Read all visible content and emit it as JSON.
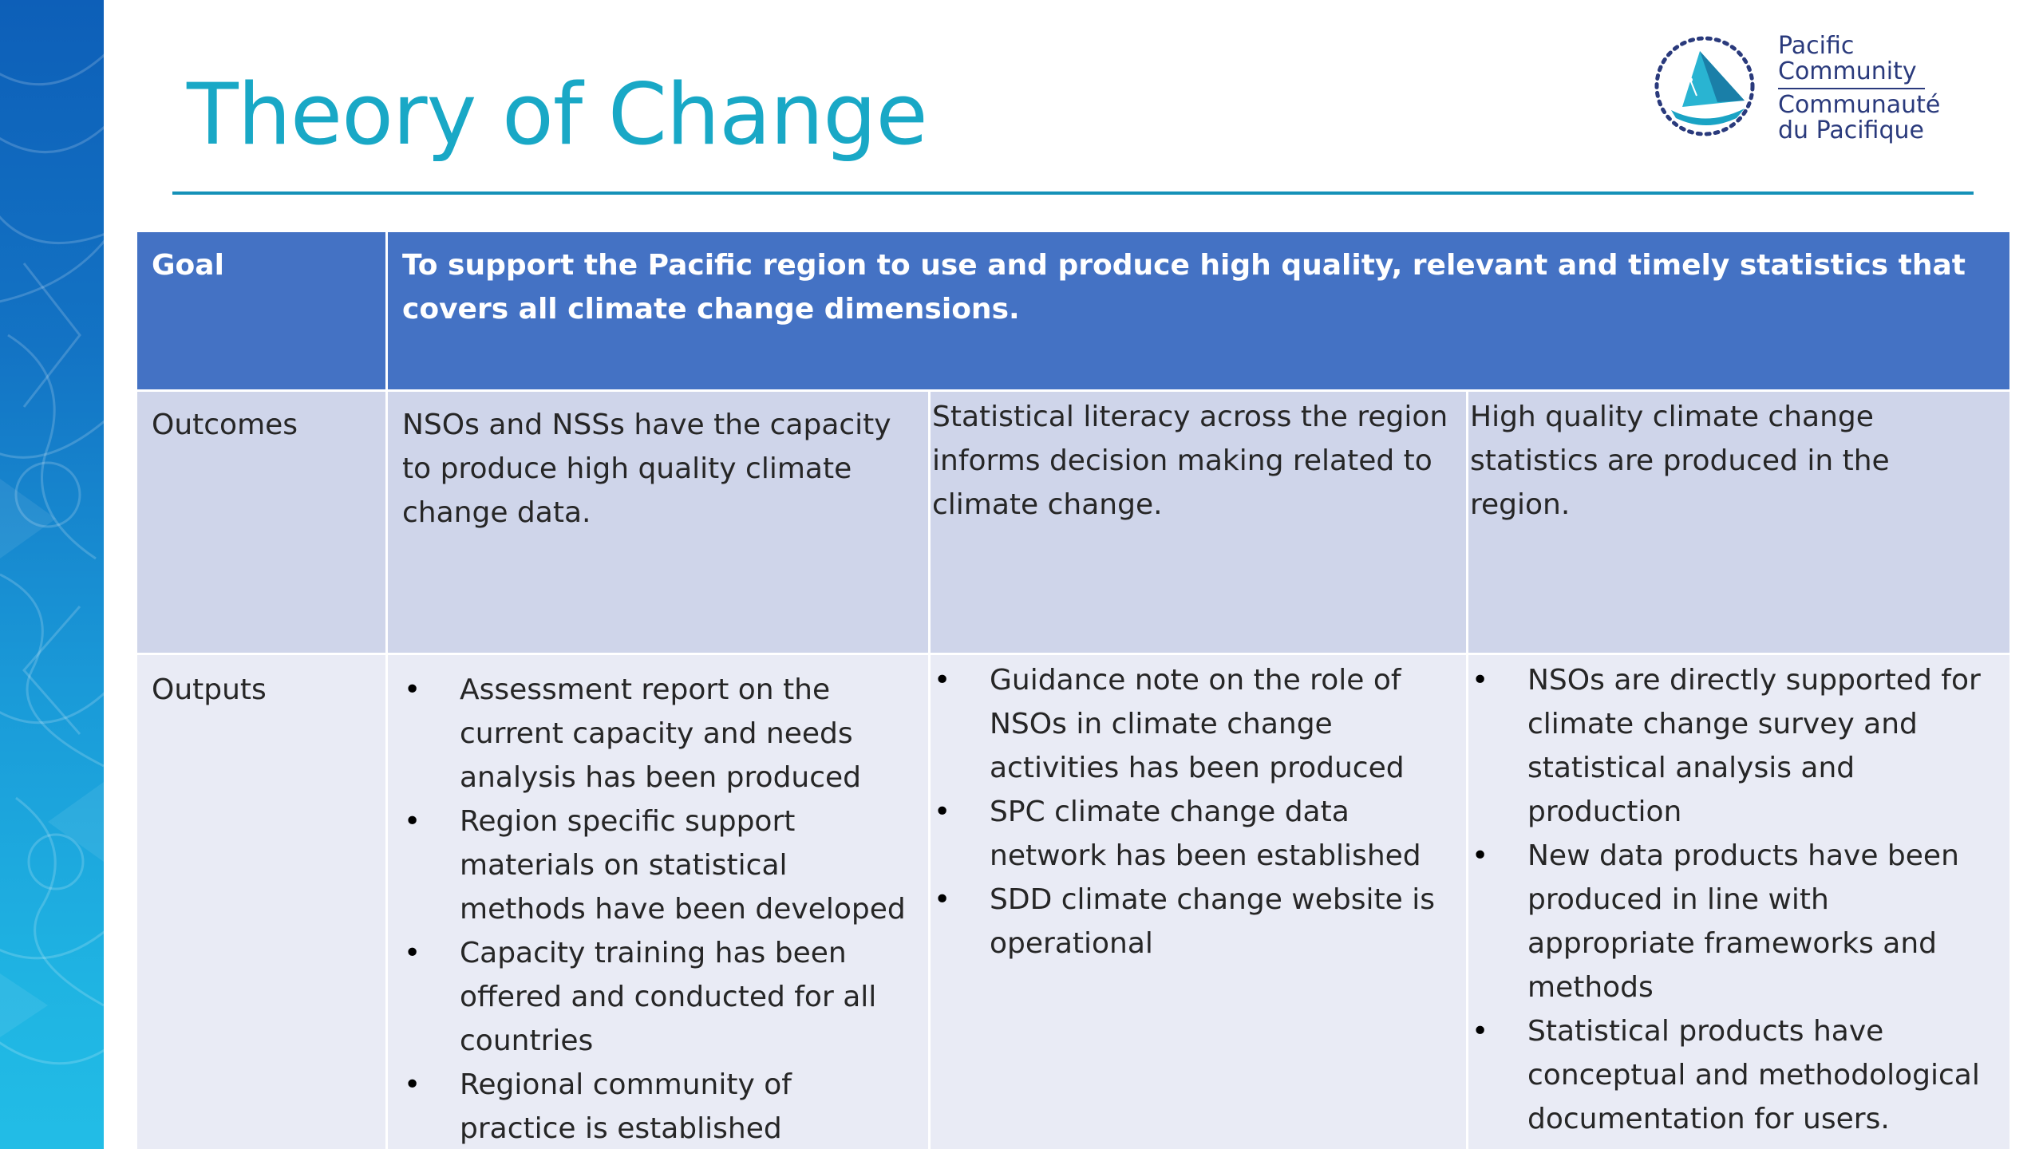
{
  "slide": {
    "title": "Theory of Change"
  },
  "logo": {
    "icon": "pacific-community-sail-logo",
    "line1": "Pacific",
    "line2": "Community",
    "line3": "Communauté",
    "line4": "du Pacifique",
    "color": "#2a3a7c",
    "accent": "#1aa3c4"
  },
  "table": {
    "goal": {
      "label": "Goal",
      "text": "To support the Pacific region to use and produce high quality, relevant and timely statistics that covers all climate change dimensions."
    },
    "outcomes": {
      "label": "Outcomes",
      "items": [
        "NSOs and NSSs have the capacity to produce high quality climate change data.",
        "Statistical literacy across the region informs decision making related to climate change.",
        "High quality climate change statistics are produced in the region."
      ]
    },
    "outputs": {
      "label": "Outputs",
      "columns": [
        [
          "Assessment report on the current capacity and needs analysis has been produced",
          "Region specific support materials on statistical methods have been developed",
          "Capacity training has been offered and conducted for all countries",
          "Regional community of practice is established"
        ],
        [
          "Guidance note on the role of NSOs in climate change activities has been produced",
          "SPC climate change data network has been established",
          "SDD climate change website is operational"
        ],
        [
          "NSOs are directly supported for climate change survey and statistical analysis and production",
          "New data products have been produced in line with appropriate frameworks and methods",
          "Statistical products have conceptual and methodological documentation for users."
        ]
      ]
    },
    "colors": {
      "goal_row": "#4472c4",
      "outcomes_row": "#cfd5ea",
      "outputs_row": "#e9ebf5",
      "title": "#19a8c6"
    }
  }
}
